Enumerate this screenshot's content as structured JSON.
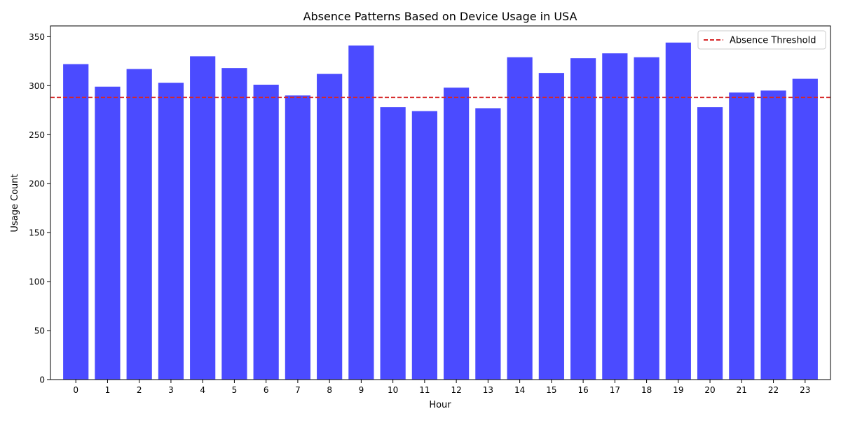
{
  "chart_data": {
    "type": "bar",
    "title": "Absence Patterns Based on Device Usage in USA",
    "xlabel": "Hour",
    "ylabel": "Usage Count",
    "categories": [
      "0",
      "1",
      "2",
      "3",
      "4",
      "5",
      "6",
      "7",
      "8",
      "9",
      "10",
      "11",
      "12",
      "13",
      "14",
      "15",
      "16",
      "17",
      "18",
      "19",
      "20",
      "21",
      "22",
      "23"
    ],
    "values": [
      322,
      299,
      317,
      303,
      330,
      318,
      301,
      290,
      312,
      341,
      278,
      274,
      298,
      277,
      329,
      313,
      328,
      333,
      329,
      344,
      278,
      293,
      295,
      307
    ],
    "ylim": [
      0,
      361
    ],
    "yticks": [
      0,
      50,
      100,
      150,
      200,
      250,
      300,
      350
    ],
    "bar_color": "#4b4bff",
    "threshold": {
      "value": 288,
      "label": "Absence Threshold",
      "color": "#d62728",
      "style": "dashed"
    },
    "legend_position": "top-right",
    "grid": false
  }
}
